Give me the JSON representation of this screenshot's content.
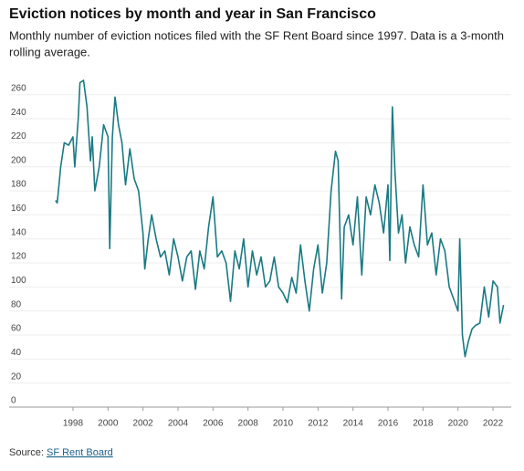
{
  "chart_data": {
    "type": "line",
    "title": "Eviction notices by month and year in San Francisco",
    "subtitle": [
      "Monthly number of eviction notices filed with the SF Rent Board since 1997. Data is a 3-month",
      "rolling average."
    ],
    "source_prefix": "Source:",
    "source_link": "SF Rent Board",
    "x": [
      1997.0,
      1997.1,
      1997.3,
      1997.5,
      1997.75,
      1998.0,
      1998.1,
      1998.3,
      1998.4,
      1998.6,
      1998.8,
      1999.0,
      1999.1,
      1999.25,
      1999.5,
      1999.75,
      2000.0,
      2000.1,
      2000.25,
      2000.4,
      2000.6,
      2000.8,
      2001.0,
      2001.25,
      2001.5,
      2001.75,
      2002.0,
      2002.1,
      2002.3,
      2002.5,
      2002.75,
      2003.0,
      2003.25,
      2003.5,
      2003.75,
      2004.0,
      2004.25,
      2004.5,
      2004.75,
      2005.0,
      2005.25,
      2005.5,
      2005.75,
      2006.0,
      2006.25,
      2006.5,
      2006.75,
      2007.0,
      2007.25,
      2007.5,
      2007.75,
      2008.0,
      2008.25,
      2008.5,
      2008.75,
      2009.0,
      2009.25,
      2009.5,
      2009.75,
      2010.0,
      2010.25,
      2010.5,
      2010.75,
      2011.0,
      2011.25,
      2011.5,
      2011.75,
      2012.0,
      2012.25,
      2012.5,
      2012.75,
      2013.0,
      2013.15,
      2013.35,
      2013.5,
      2013.75,
      2014.0,
      2014.25,
      2014.5,
      2014.75,
      2015.0,
      2015.25,
      2015.5,
      2015.75,
      2016.0,
      2016.1,
      2016.25,
      2016.4,
      2016.6,
      2016.8,
      2017.0,
      2017.25,
      2017.5,
      2017.75,
      2018.0,
      2018.25,
      2018.5,
      2018.75,
      2019.0,
      2019.25,
      2019.5,
      2019.75,
      2020.0,
      2020.1,
      2020.25,
      2020.4,
      2020.6,
      2020.8,
      2021.0,
      2021.25,
      2021.5,
      2021.75,
      2022.0,
      2022.25,
      2022.4,
      2022.6
    ],
    "series": [
      {
        "name": "Eviction notices",
        "color": "#1a7a82",
        "values": [
          172,
          170,
          200,
          220,
          218,
          225,
          200,
          240,
          270,
          272,
          250,
          205,
          225,
          180,
          200,
          235,
          225,
          132,
          225,
          258,
          235,
          220,
          185,
          215,
          190,
          180,
          145,
          115,
          140,
          160,
          140,
          125,
          130,
          110,
          140,
          125,
          105,
          125,
          130,
          98,
          130,
          115,
          150,
          175,
          125,
          130,
          120,
          88,
          130,
          115,
          140,
          100,
          130,
          110,
          125,
          100,
          105,
          125,
          100,
          95,
          87,
          108,
          95,
          135,
          105,
          80,
          115,
          135,
          95,
          120,
          180,
          213,
          205,
          90,
          150,
          160,
          135,
          175,
          110,
          175,
          160,
          185,
          170,
          145,
          185,
          122,
          250,
          195,
          145,
          160,
          120,
          150,
          135,
          125,
          185,
          135,
          145,
          110,
          140,
          130,
          100,
          90,
          80,
          140,
          60,
          42,
          55,
          65,
          68,
          70,
          100,
          75,
          105,
          100,
          70,
          85
        ]
      }
    ],
    "xlim": [
      1994.56,
      2023.04
    ],
    "xticks": [
      1998,
      2000,
      2002,
      2004,
      2006,
      2008,
      2010,
      2012,
      2014,
      2016,
      2018,
      2020,
      2022
    ],
    "ylim": [
      0,
      272
    ],
    "yticks": [
      0,
      20,
      40,
      60,
      80,
      100,
      120,
      140,
      160,
      180,
      200,
      220,
      240,
      260
    ],
    "grid": true
  }
}
